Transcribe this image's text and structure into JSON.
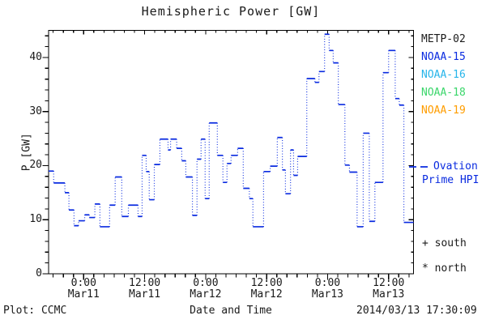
{
  "chart_data": {
    "type": "line",
    "style": "step plot; horizontal segments solid, vertical connectors dotted",
    "title": "Hemispheric Power [GW]",
    "xlabel": "Date and Time",
    "ylabel": "P [GW]",
    "x_unit": "hours relative to Mar11 0:00",
    "x_range_hours": [
      -6.9,
      64.9
    ],
    "ylim": [
      0,
      45
    ],
    "y_major_ticks": [
      0,
      10,
      20,
      30,
      40
    ],
    "y_minor_step_gw": 2,
    "x_minor_step_hours": 2,
    "x_major_ticks": [
      {
        "hour": 0,
        "time": "0:00",
        "date": "Mar11"
      },
      {
        "hour": 12,
        "time": "12:00",
        "date": "Mar11"
      },
      {
        "hour": 24,
        "time": "0:00",
        "date": "Mar12"
      },
      {
        "hour": 36,
        "time": "12:00",
        "date": "Mar12"
      },
      {
        "hour": 48,
        "time": "0:00",
        "date": "Mar13"
      },
      {
        "hour": 60,
        "time": "12:00",
        "date": "Mar13"
      }
    ],
    "series": [
      {
        "name": "Ovation Prime HPI",
        "color": "#0a2be0",
        "points": [
          [
            -6.9,
            19.0
          ],
          [
            -5.9,
            16.8
          ],
          [
            -3.7,
            15.0
          ],
          [
            -2.9,
            11.8
          ],
          [
            -1.9,
            8.9
          ],
          [
            -1.0,
            9.8
          ],
          [
            0.2,
            10.9
          ],
          [
            1.1,
            10.4
          ],
          [
            2.2,
            12.9
          ],
          [
            3.2,
            8.7
          ],
          [
            5.1,
            12.7
          ],
          [
            6.2,
            17.9
          ],
          [
            7.5,
            10.6
          ],
          [
            8.8,
            12.7
          ],
          [
            10.7,
            10.6
          ],
          [
            11.5,
            21.9
          ],
          [
            12.3,
            18.9
          ],
          [
            12.9,
            13.7
          ],
          [
            13.9,
            20.2
          ],
          [
            15.0,
            24.9
          ],
          [
            16.6,
            22.9
          ],
          [
            17.1,
            24.9
          ],
          [
            18.3,
            23.2
          ],
          [
            19.3,
            20.9
          ],
          [
            20.1,
            17.9
          ],
          [
            21.4,
            10.8
          ],
          [
            22.3,
            21.2
          ],
          [
            23.1,
            24.9
          ],
          [
            23.9,
            13.9
          ],
          [
            24.7,
            27.9
          ],
          [
            26.3,
            21.9
          ],
          [
            27.4,
            16.9
          ],
          [
            28.2,
            20.4
          ],
          [
            29.0,
            21.9
          ],
          [
            30.3,
            23.2
          ],
          [
            31.4,
            15.8
          ],
          [
            32.6,
            13.9
          ],
          [
            33.3,
            8.7
          ],
          [
            35.4,
            18.9
          ],
          [
            36.7,
            19.9
          ],
          [
            38.1,
            25.2
          ],
          [
            39.1,
            19.2
          ],
          [
            39.7,
            14.8
          ],
          [
            40.7,
            22.9
          ],
          [
            41.3,
            18.2
          ],
          [
            42.1,
            21.7
          ],
          [
            43.9,
            36.1
          ],
          [
            45.5,
            35.4
          ],
          [
            46.3,
            37.4
          ],
          [
            47.4,
            44.3
          ],
          [
            48.3,
            41.3
          ],
          [
            49.1,
            39.0
          ],
          [
            50.1,
            31.3
          ],
          [
            51.4,
            20.1
          ],
          [
            52.3,
            18.8
          ],
          [
            53.8,
            8.7
          ],
          [
            55.0,
            26.0
          ],
          [
            56.2,
            9.7
          ],
          [
            57.3,
            16.9
          ],
          [
            58.9,
            37.2
          ],
          [
            60.0,
            41.3
          ],
          [
            61.3,
            32.4
          ],
          [
            62.1,
            31.2
          ],
          [
            63.0,
            9.5
          ]
        ]
      }
    ]
  },
  "legend": {
    "satellites": [
      {
        "label": "METP-02",
        "color": "#1a1a1a"
      },
      {
        "label": "NOAA-15",
        "color": "#0a2be0"
      },
      {
        "label": "NOAA-16",
        "color": "#27b5ea"
      },
      {
        "label": "NOAA-18",
        "color": "#3bd66b"
      },
      {
        "label": "NOAA-19",
        "color": "#ff9d00"
      }
    ],
    "ovation": {
      "line1": "Ovation",
      "line2": "Prime HPI",
      "color": "#0a2be0"
    },
    "hemisphere_markers": {
      "south": "+ south",
      "north": "* north"
    }
  },
  "footer": {
    "credit": "Plot: CCMC",
    "timestamp": "2014/03/13 17:30:09"
  },
  "colors": {
    "axis": "#000000",
    "background": "#ffffff",
    "curve": "#0a2be0"
  }
}
